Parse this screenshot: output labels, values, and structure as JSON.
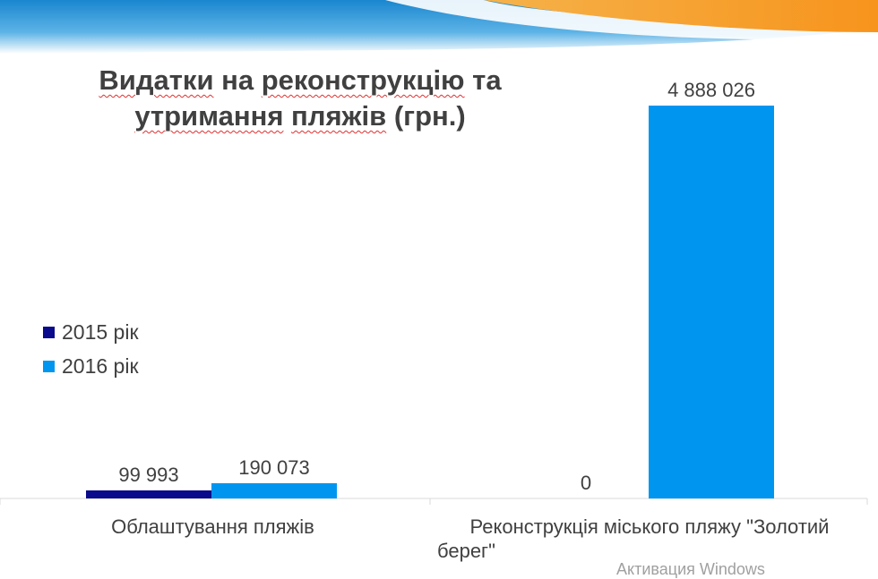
{
  "chart_data": {
    "type": "bar",
    "title": "Видатки на реконструкцію та утримання пляжів (грн.)",
    "title_parts": {
      "w1": "Видатки",
      "w2": "на",
      "w3": "реконструкцію",
      "w4": "та",
      "w5": "утримання",
      "w6": "пляжів",
      "w7": "(грн.)"
    },
    "categories": [
      "Облаштування пляжів",
      "Реконструкція міського пляжу \"Золотий берег\""
    ],
    "category_lines": [
      [
        "Облаштування пляжів"
      ],
      [
        "Реконструкція міського пляжу \"Золотий",
        "берег\""
      ]
    ],
    "series": [
      {
        "name": "2015 рік",
        "color": "#0a0a8c",
        "values": [
          99993,
          0
        ],
        "labels": [
          "99 993",
          "0"
        ]
      },
      {
        "name": "2016 рік",
        "color": "#0096f0",
        "values": [
          190073,
          4888026
        ],
        "labels": [
          "190 073",
          "4 888 026"
        ]
      }
    ],
    "ylim": [
      0,
      4888026
    ],
    "grid": false,
    "legend_position": "left"
  },
  "watermark": "Активация Windows",
  "colors": {
    "header_blue": "#1e88d0",
    "header_orange": "#f7a12c",
    "text": "#404040",
    "axis": "#d9d9d9"
  }
}
